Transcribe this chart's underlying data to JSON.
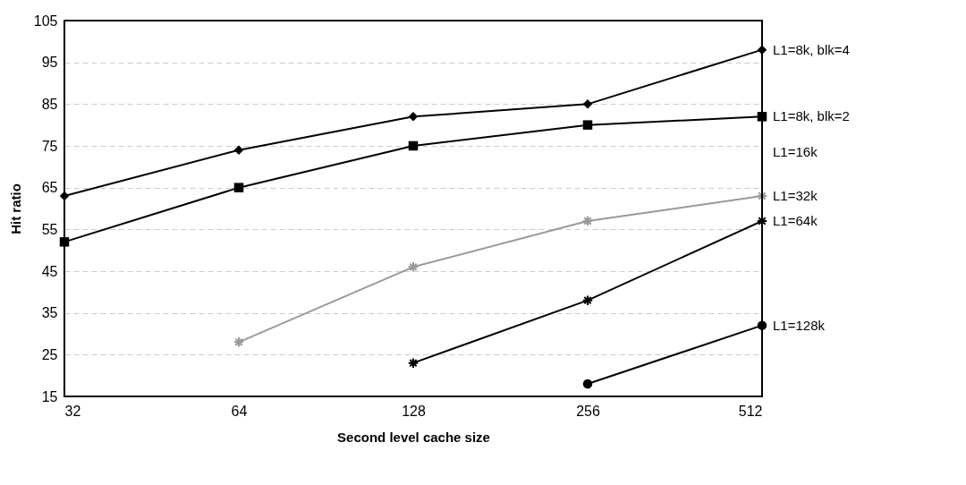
{
  "chart_data": {
    "type": "line",
    "xlabel": "Second level cache size",
    "ylabel": "Hit ratio",
    "x": [
      32,
      64,
      128,
      256,
      512
    ],
    "log": "x",
    "xlim": [
      32,
      512
    ],
    "xticks": [
      32,
      64,
      128,
      256,
      512
    ],
    "ylim": [
      15,
      105
    ],
    "yticks": [
      15,
      25,
      35,
      45,
      55,
      65,
      75,
      85,
      95,
      105
    ],
    "grid": "y",
    "annotations": [
      "L1=16k"
    ],
    "series": [
      {
        "name": "L1=8k, blk=4",
        "color": "#000000",
        "marker": "diamond",
        "values": [
          63,
          74,
          82,
          85,
          98
        ]
      },
      {
        "name": "L1=8k, blk=2",
        "color": "#000000",
        "marker": "square",
        "values": [
          52,
          65,
          75,
          80,
          82
        ]
      },
      {
        "name": "L1=32k",
        "color": "#999999",
        "marker": "cross",
        "values": [
          null,
          28,
          46,
          57,
          63
        ]
      },
      {
        "name": "L1=64k",
        "color": "#000000",
        "marker": "cross",
        "values": [
          null,
          null,
          23,
          38,
          57
        ]
      },
      {
        "name": "L1=128k",
        "color": "#000000",
        "marker": "circle",
        "values": [
          null,
          null,
          null,
          18,
          32
        ]
      }
    ]
  }
}
